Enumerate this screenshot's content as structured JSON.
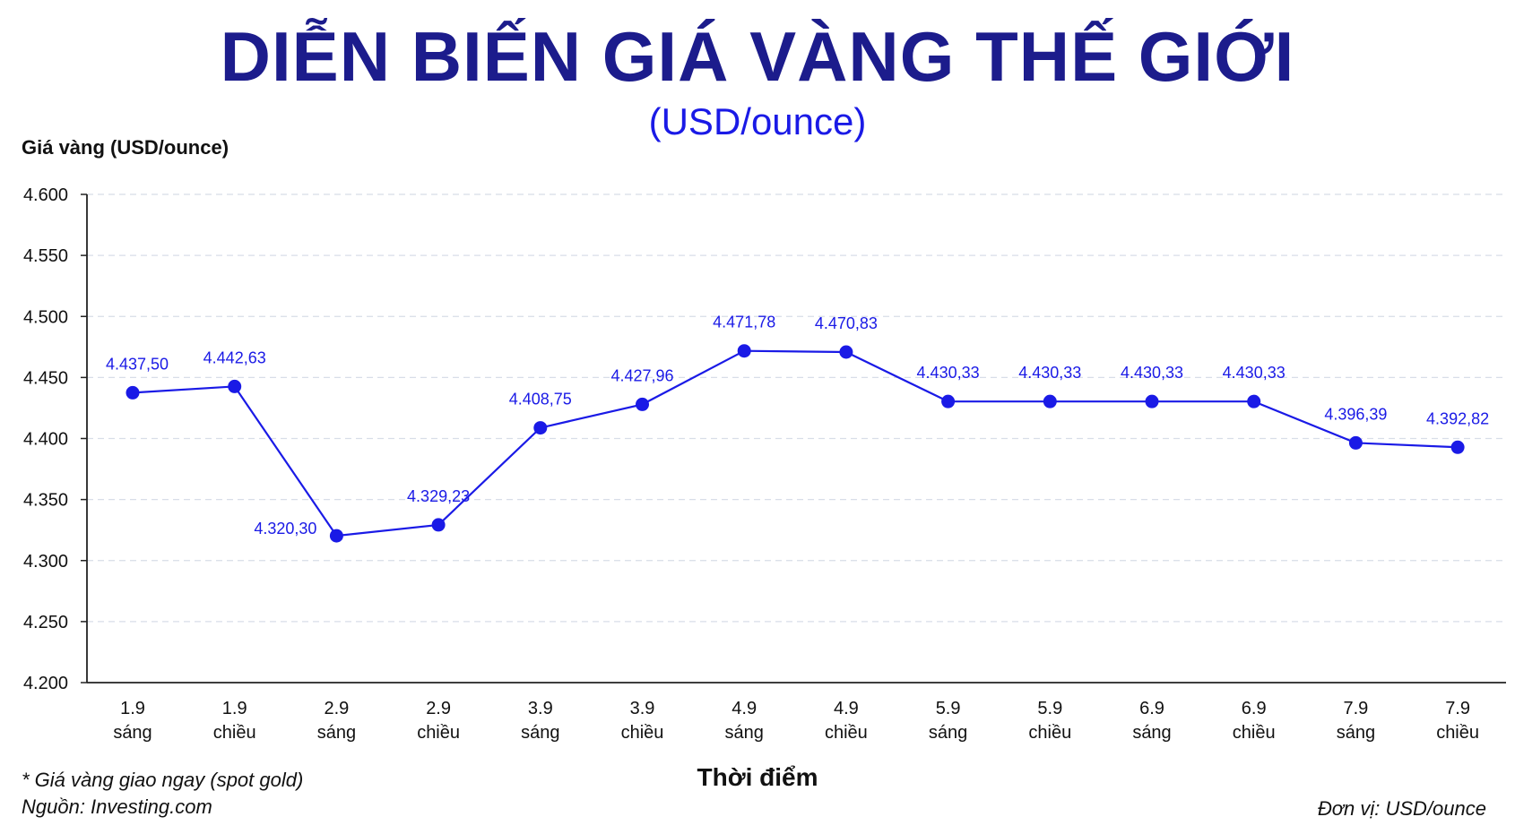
{
  "header": {
    "title": "DIỄN BIẾN GIÁ VÀNG THẾ GIỚI",
    "subtitle": "(USD/ounce)"
  },
  "footer": {
    "note": "* Giá vàng giao ngay (spot gold)",
    "source": "Nguồn: Investing.com",
    "unit": "Đơn vị: USD/ounce"
  },
  "colors": {
    "title": "#1c1c8c",
    "subtitle": "#1a1ae6",
    "series": "#1a1ae6",
    "label": "#1a1ae6",
    "grid": "#d8dde8"
  },
  "chart_data": {
    "type": "line",
    "title": "DIỄN BIẾN GIÁ VÀNG THẾ GIỚI",
    "subtitle": "(USD/ounce)",
    "ylabel": "Giá vàng (USD/ounce)",
    "xlabel": "Thời điểm",
    "ylim": [
      4200,
      4600
    ],
    "yticks": [
      4200,
      4250,
      4300,
      4350,
      4400,
      4450,
      4500,
      4550,
      4600
    ],
    "ytick_labels": [
      "4.200",
      "4.250",
      "4.300",
      "4.350",
      "4.400",
      "4.450",
      "4.500",
      "4.550",
      "4.600"
    ],
    "grid": true,
    "legend": "none",
    "categories": [
      [
        "1.9",
        "sáng"
      ],
      [
        "1.9",
        "chiều"
      ],
      [
        "2.9",
        "sáng"
      ],
      [
        "2.9",
        "chiều"
      ],
      [
        "3.9",
        "sáng"
      ],
      [
        "3.9",
        "chiều"
      ],
      [
        "4.9",
        "sáng"
      ],
      [
        "4.9",
        "chiều"
      ],
      [
        "5.9",
        "sáng"
      ],
      [
        "5.9",
        "chiều"
      ],
      [
        "6.9",
        "sáng"
      ],
      [
        "6.9",
        "chiều"
      ],
      [
        "7.9",
        "sáng"
      ],
      [
        "7.9",
        "chiều"
      ]
    ],
    "series": [
      {
        "values": [
          4437.5,
          4442.63,
          4320.3,
          4329.23,
          4408.75,
          4427.96,
          4471.78,
          4470.83,
          4430.33,
          4430.33,
          4430.33,
          4430.33,
          4396.39,
          4392.82
        ],
        "labels": [
          "4.437,50",
          "4.442,63",
          "4.320,30",
          "4.329,23",
          "4.408,75",
          "4.427,96",
          "4.471,78",
          "4.470,83",
          "4.430,33",
          "4.430,33",
          "4.430,33",
          "4.430,33",
          "4.396,39",
          "4.392,82"
        ]
      }
    ]
  }
}
